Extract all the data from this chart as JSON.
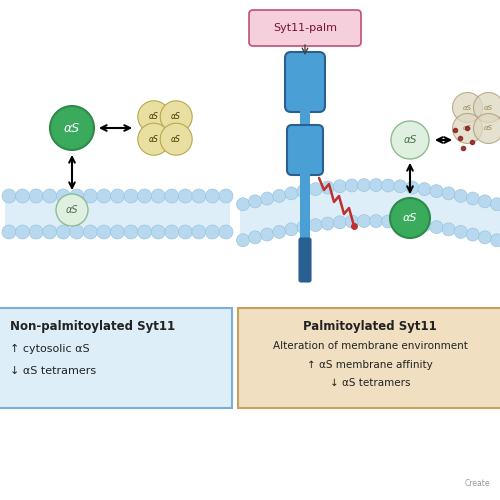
{
  "bg_color": "#ffffff",
  "membrane_color_top": "#b8d8f0",
  "membrane_color_inner": "#ddeef8",
  "green_dark_color": "#3aaa5c",
  "green_dark_edge": "#2d8a48",
  "green_light_color": "#e0f0e0",
  "green_light_edge": "#90bb90",
  "tetramer_color": "#e8dfa0",
  "tetramer_edge": "#b8a850",
  "tetramer_faded_color": "#ddd8c0",
  "tetramer_faded_edge": "#a89870",
  "syt11_blue": "#4a9fd4",
  "syt11_blue_dark": "#2a6090",
  "palm_red": "#c03030",
  "syt11_label_bg": "#f5d0dc",
  "syt11_label_border": "#c05070",
  "left_box_bg": "#ddeef8",
  "left_box_border": "#7ab0d8",
  "right_box_bg": "#f0dfc0",
  "right_box_border": "#c8a060",
  "text_dark": "#222222",
  "left_box_title": "Non-palmitoylated Syt11",
  "left_box_line1": "↑ cytosolic αS",
  "left_box_line2": "↓ αS tetramers",
  "right_box_title": "Palmitoylated Syt11",
  "right_box_line1": "Alteration of membrane environment",
  "right_box_line2": "↑ αS membrane affinity",
  "right_box_line3": "↓ αS tetramers",
  "syt11_label": "Syt11-palm",
  "aS": "αS",
  "watermark": "Create"
}
